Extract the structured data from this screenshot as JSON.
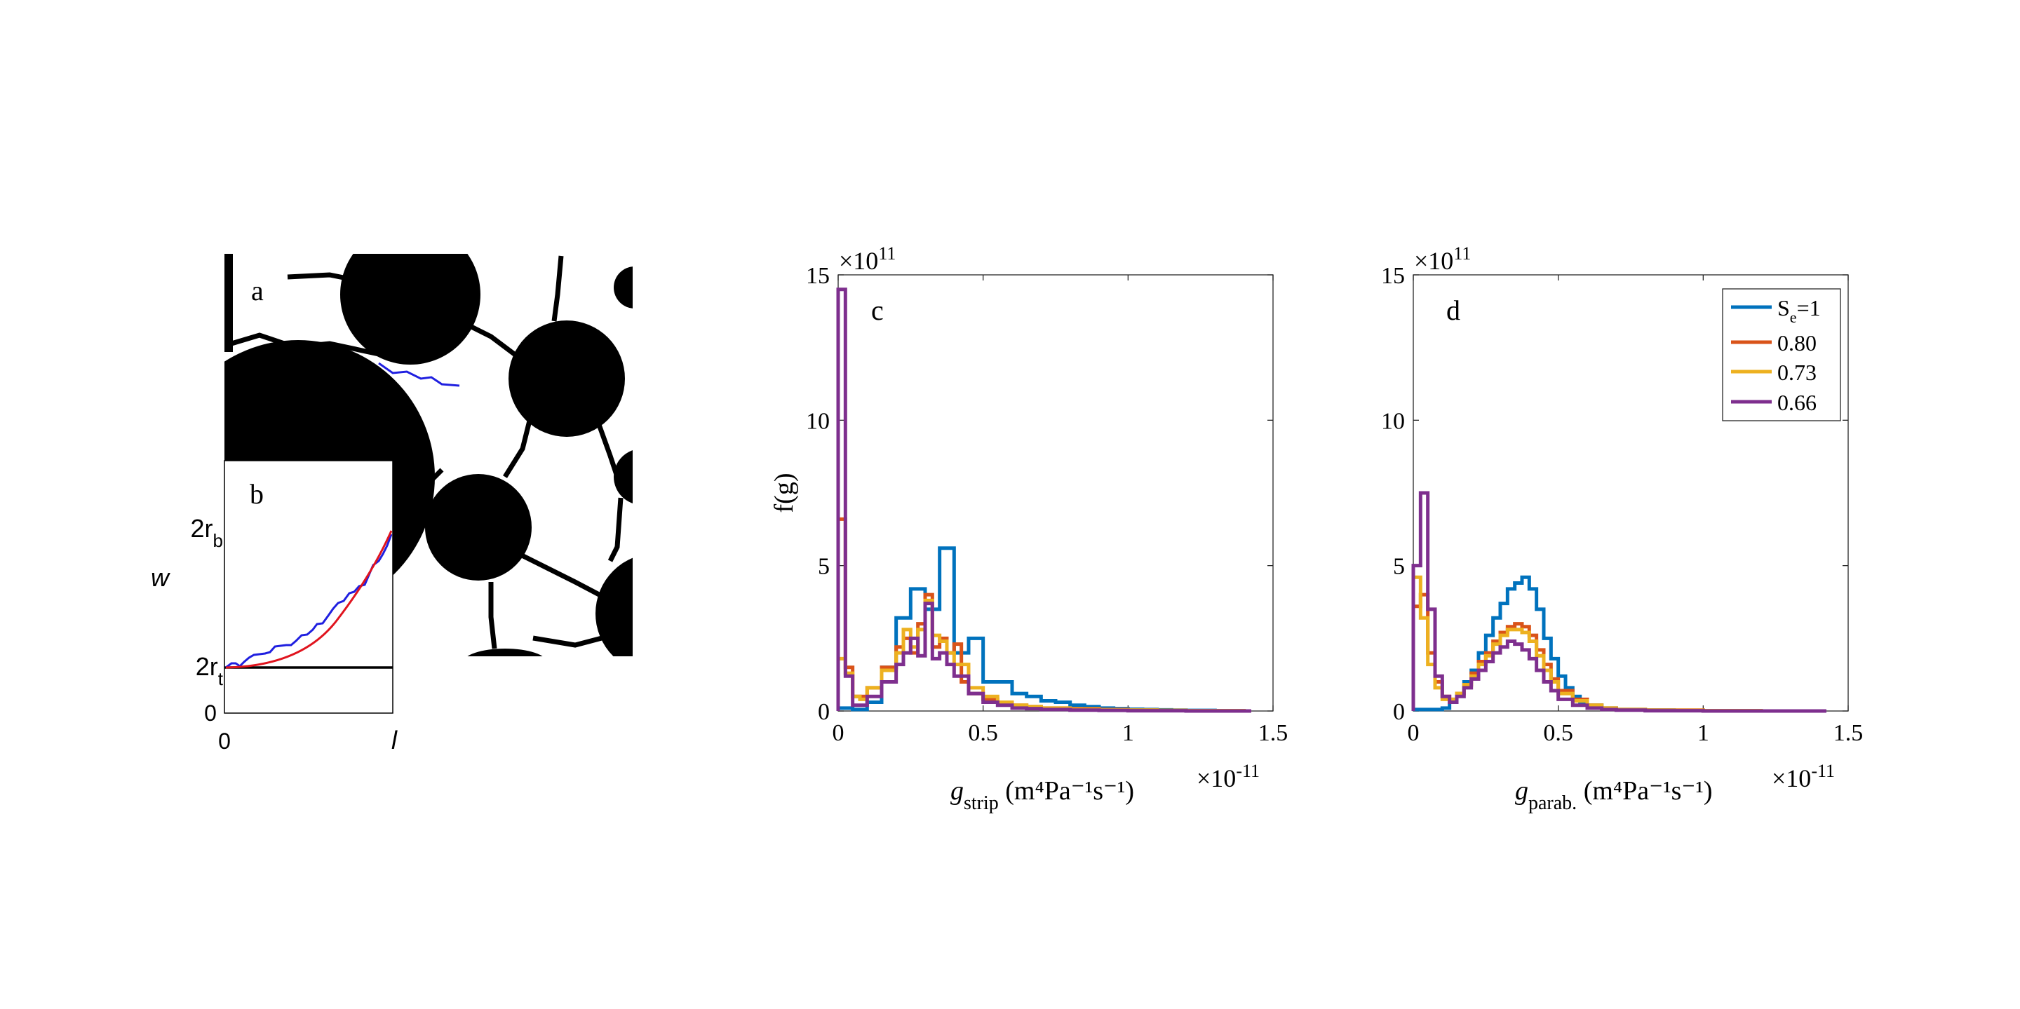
{
  "panel_a": {
    "label": "a",
    "colors": {
      "solid": "#000000",
      "pore": "#ffffff",
      "path": "#1f1fe0"
    },
    "icon": "porous-medium-binary-image"
  },
  "panel_b": {
    "label": "b",
    "ylabel": "w",
    "xlabel": "l",
    "ytick_top_main": "2r",
    "ytick_top_sub": "b",
    "ytick_mid_main": "2r",
    "ytick_mid_sub": "t",
    "ytick_zero": "0",
    "xtick_zero": "0",
    "xtick_end": "l",
    "colors": {
      "measured": "#1f1fe0",
      "fit": "#e0141e",
      "baseline": "#000000"
    }
  },
  "chart_data": [
    {
      "type": "line",
      "panel": "c",
      "label": "c",
      "ylabel": "f(g)",
      "xlabel_main": "g",
      "xlabel_sub": "strip",
      "xlabel_units": " (m⁴Pa⁻¹s⁻¹)",
      "x_exponent": "×10",
      "x_exponent_power": "-11",
      "y_exponent": "×10",
      "y_exponent_power": "11",
      "xlim": [
        0,
        1.5
      ],
      "ylim": [
        0,
        15
      ],
      "xticks": [
        "0",
        "0.5",
        "1",
        "1.5"
      ],
      "yticks": [
        "0",
        "5",
        "10",
        "15"
      ],
      "series": [
        {
          "color": "#0072BD",
          "x": [
            0,
            0.05,
            0.1,
            0.15,
            0.2,
            0.25,
            0.3,
            0.35,
            0.4,
            0.45,
            0.5,
            0.55,
            0.6,
            0.65,
            0.7,
            0.75,
            0.8,
            0.85,
            0.9,
            0.95,
            1.0,
            1.05,
            1.1,
            1.15,
            1.2,
            1.25,
            1.3,
            1.35,
            1.4
          ],
          "y": [
            0.1,
            0.05,
            0.3,
            1.5,
            3.2,
            4.2,
            3.5,
            5.6,
            2.0,
            2.5,
            1.0,
            1.0,
            0.6,
            0.5,
            0.35,
            0.3,
            0.2,
            0.15,
            0.1,
            0.08,
            0.06,
            0.05,
            0.04,
            0.03,
            0.02,
            0.02,
            0.01,
            0.01,
            0.0
          ]
        },
        {
          "color": "#D95319",
          "x": [
            0,
            0.025,
            0.05,
            0.075,
            0.1,
            0.15,
            0.2,
            0.225,
            0.25,
            0.275,
            0.3,
            0.325,
            0.35,
            0.375,
            0.4,
            0.425,
            0.45,
            0.5,
            0.55,
            0.6,
            0.65,
            0.7,
            0.8,
            0.9,
            1.0,
            1.1,
            1.2,
            1.3,
            1.4
          ],
          "y": [
            6.6,
            1.5,
            0.5,
            0.5,
            0.8,
            1.5,
            2.2,
            2.5,
            2.0,
            3.0,
            4.0,
            2.2,
            2.5,
            2.0,
            2.3,
            1.0,
            0.6,
            0.4,
            0.3,
            0.2,
            0.15,
            0.1,
            0.08,
            0.05,
            0.03,
            0.02,
            0.01,
            0.01,
            0.0
          ]
        },
        {
          "color": "#EDB120",
          "x": [
            0,
            0.025,
            0.05,
            0.075,
            0.1,
            0.15,
            0.2,
            0.225,
            0.25,
            0.275,
            0.3,
            0.325,
            0.35,
            0.375,
            0.4,
            0.45,
            0.5,
            0.55,
            0.6,
            0.65,
            0.7,
            0.8,
            0.9,
            1.0,
            1.1,
            1.2,
            1.3,
            1.4
          ],
          "y": [
            1.8,
            1.3,
            0.5,
            0.4,
            0.8,
            1.4,
            2.0,
            2.8,
            2.2,
            2.8,
            3.8,
            2.6,
            2.4,
            2.0,
            1.6,
            0.8,
            0.5,
            0.3,
            0.2,
            0.15,
            0.1,
            0.06,
            0.04,
            0.03,
            0.02,
            0.01,
            0.01,
            0.0
          ]
        },
        {
          "color": "#7E2F8E",
          "x": [
            0,
            0.025,
            0.05,
            0.075,
            0.1,
            0.15,
            0.2,
            0.225,
            0.25,
            0.275,
            0.3,
            0.325,
            0.35,
            0.375,
            0.4,
            0.45,
            0.5,
            0.55,
            0.6,
            0.65,
            0.7,
            0.8,
            0.9,
            1.0,
            1.1,
            1.2,
            1.3,
            1.4
          ],
          "y": [
            14.5,
            1.2,
            0.2,
            0.2,
            0.5,
            1.0,
            1.6,
            2.0,
            2.5,
            1.9,
            3.7,
            1.8,
            2.0,
            1.6,
            1.2,
            0.6,
            0.3,
            0.2,
            0.1,
            0.08,
            0.05,
            0.03,
            0.02,
            0.01,
            0.01,
            0.0,
            0.0,
            0.0
          ]
        }
      ]
    },
    {
      "type": "line",
      "panel": "d",
      "label": "d",
      "ylabel": "",
      "xlabel_main": "g",
      "xlabel_sub": "parab.",
      "xlabel_units": " (m⁴Pa⁻¹s⁻¹)",
      "x_exponent": "×10",
      "x_exponent_power": "-11",
      "y_exponent": "×10",
      "y_exponent_power": "11",
      "xlim": [
        0,
        1.5
      ],
      "ylim": [
        0,
        15
      ],
      "xticks": [
        "0",
        "0.5",
        "1",
        "1.5"
      ],
      "yticks": [
        "0",
        "5",
        "10",
        "15"
      ],
      "legend_position": "top-right",
      "series": [
        {
          "name": "S",
          "name_sub": "e",
          "name_suffix": "=1",
          "color": "#0072BD",
          "x": [
            0,
            0.05,
            0.1,
            0.125,
            0.15,
            0.175,
            0.2,
            0.225,
            0.25,
            0.275,
            0.3,
            0.325,
            0.35,
            0.375,
            0.4,
            0.425,
            0.45,
            0.475,
            0.5,
            0.525,
            0.55,
            0.575,
            0.6,
            0.65,
            0.7,
            0.8,
            0.9,
            1.0,
            1.2,
            1.4
          ],
          "y": [
            0.05,
            0.05,
            0.1,
            0.3,
            0.6,
            1.0,
            1.4,
            2.0,
            2.6,
            3.2,
            3.7,
            4.2,
            4.4,
            4.6,
            4.2,
            3.5,
            2.5,
            1.8,
            1.2,
            0.8,
            0.5,
            0.3,
            0.2,
            0.1,
            0.05,
            0.03,
            0.02,
            0.01,
            0.0,
            0.0
          ]
        },
        {
          "name": "0.80",
          "color": "#D95319",
          "x": [
            0,
            0.025,
            0.05,
            0.075,
            0.1,
            0.125,
            0.15,
            0.175,
            0.2,
            0.225,
            0.25,
            0.275,
            0.3,
            0.325,
            0.35,
            0.375,
            0.4,
            0.425,
            0.45,
            0.475,
            0.5,
            0.55,
            0.6,
            0.65,
            0.7,
            0.8,
            1.0,
            1.2,
            1.4
          ],
          "y": [
            3.6,
            4.0,
            2.0,
            1.0,
            0.5,
            0.4,
            0.6,
            0.9,
            1.3,
            1.7,
            2.0,
            2.4,
            2.7,
            2.9,
            3.0,
            2.9,
            2.6,
            2.1,
            1.6,
            1.1,
            0.7,
            0.4,
            0.2,
            0.1,
            0.05,
            0.03,
            0.01,
            0.0,
            0.0
          ]
        },
        {
          "name": "0.73",
          "color": "#EDB120",
          "x": [
            0,
            0.025,
            0.05,
            0.075,
            0.1,
            0.125,
            0.15,
            0.175,
            0.2,
            0.225,
            0.25,
            0.275,
            0.3,
            0.325,
            0.35,
            0.375,
            0.4,
            0.425,
            0.45,
            0.475,
            0.5,
            0.55,
            0.6,
            0.65,
            0.7,
            0.8,
            1.0,
            1.2,
            1.4
          ],
          "y": [
            4.6,
            3.2,
            1.6,
            0.8,
            0.4,
            0.4,
            0.6,
            0.9,
            1.2,
            1.6,
            1.9,
            2.3,
            2.6,
            2.8,
            2.8,
            2.7,
            2.4,
            1.9,
            1.4,
            1.0,
            0.6,
            0.35,
            0.2,
            0.1,
            0.05,
            0.02,
            0.01,
            0.0,
            0.0
          ]
        },
        {
          "name": "0.66",
          "color": "#7E2F8E",
          "x": [
            0,
            0.025,
            0.05,
            0.075,
            0.1,
            0.125,
            0.15,
            0.175,
            0.2,
            0.225,
            0.25,
            0.275,
            0.3,
            0.325,
            0.35,
            0.375,
            0.4,
            0.425,
            0.45,
            0.475,
            0.5,
            0.55,
            0.6,
            0.65,
            0.7,
            0.8,
            1.0,
            1.2,
            1.4
          ],
          "y": [
            5.0,
            7.5,
            3.5,
            1.2,
            0.5,
            0.3,
            0.5,
            0.8,
            1.1,
            1.4,
            1.7,
            2.0,
            2.2,
            2.4,
            2.3,
            2.1,
            1.8,
            1.4,
            1.0,
            0.7,
            0.4,
            0.2,
            0.1,
            0.05,
            0.03,
            0.01,
            0.0,
            0.0,
            0.0
          ]
        }
      ]
    }
  ]
}
